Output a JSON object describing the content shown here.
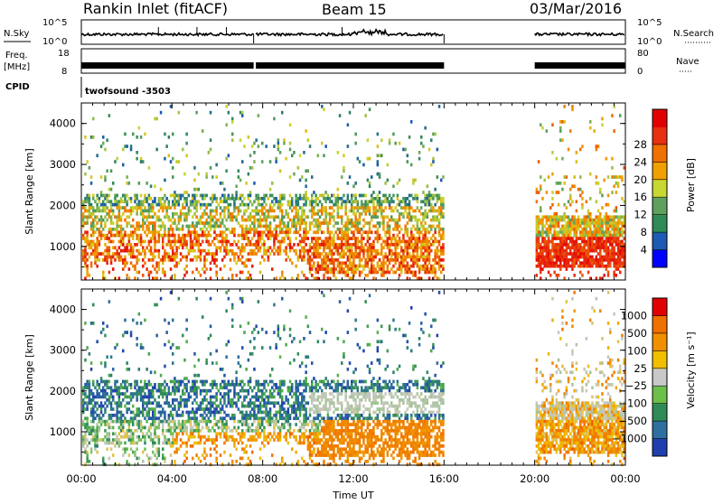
{
  "header": {
    "station": "Rankin Inlet (fitACF)",
    "beam": "Beam 15",
    "date": "03/Mar/2016"
  },
  "top_panels": {
    "nsky_label": "N.Sky",
    "nsky_ticks": [
      "10^5",
      "10^0"
    ],
    "nsearch_label": "N.Search",
    "nsearch_ticks": [
      "10^5",
      "10^0"
    ],
    "freq_label_1": "Freq.",
    "freq_label_2": "[MHz]",
    "freq_ticks": [
      "18",
      "8"
    ],
    "nave_label": "Nave",
    "nave_ticks": [
      "80",
      "0"
    ],
    "cpid_label": "CPID",
    "cpid_value": "twofsound -3503"
  },
  "chart_data": [
    {
      "type": "heatmap",
      "name": "Power",
      "ylabel": "Slant Range [km]",
      "xlabel": "Time UT",
      "x_ticks": [
        "00:00",
        "04:00",
        "08:00",
        "12:00",
        "16:00",
        "20:00",
        "00:00"
      ],
      "y_ticks": [
        1000,
        2000,
        3000,
        4000
      ],
      "ylim": [
        180,
        4500
      ],
      "xlim_hours": [
        0,
        24
      ],
      "data_gap_hours": [
        16,
        20
      ],
      "colorbar": {
        "label": "Power [dB]",
        "ticks": [
          "4",
          "8",
          "12",
          "16",
          "20",
          "24",
          "28"
        ],
        "colors": [
          "#0000ff",
          "#1c5ab4",
          "#2e8b57",
          "#5fa05f",
          "#c8d832",
          "#f0a000",
          "#f07000",
          "#e83010",
          "#e00000"
        ]
      }
    },
    {
      "type": "heatmap",
      "name": "Velocity",
      "ylabel": "Slant Range [km]",
      "xlabel": "Time UT",
      "x_ticks": [
        "00:00",
        "04:00",
        "08:00",
        "12:00",
        "16:00",
        "20:00",
        "00:00"
      ],
      "y_ticks": [
        1000,
        2000,
        3000,
        4000
      ],
      "ylim": [
        180,
        4500
      ],
      "xlim_hours": [
        0,
        24
      ],
      "data_gap_hours": [
        16,
        20
      ],
      "colorbar": {
        "label": "Velocity [m s⁻¹]",
        "ticks": [
          "1000",
          "500",
          "100",
          "25",
          "−25",
          "−100",
          "−500",
          "−1000"
        ],
        "colors": [
          "#1f3fae",
          "#2e6fa0",
          "#2e8b57",
          "#6cc04a",
          "#c8c8c8",
          "#f0c000",
          "#f09000",
          "#f07000",
          "#e00000"
        ]
      }
    }
  ]
}
